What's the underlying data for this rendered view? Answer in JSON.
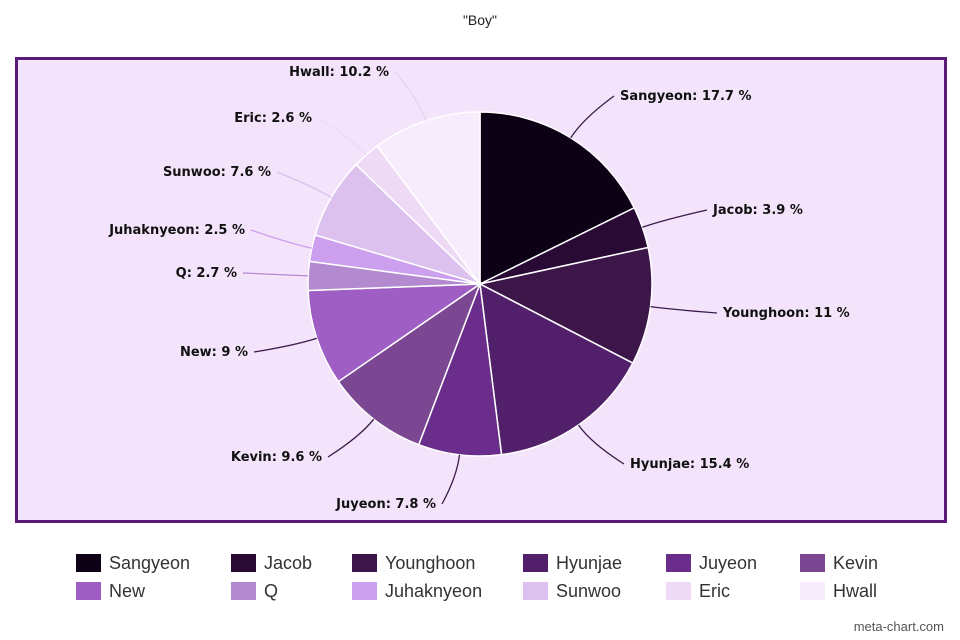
{
  "chart_data": {
    "type": "pie",
    "title": "\"Boy\"",
    "categories": [
      "Sangyeon",
      "Jacob",
      "Younghoon",
      "Hyunjae",
      "Juyeon",
      "Kevin",
      "New",
      "Q",
      "Juhaknyeon",
      "Sunwoo",
      "Eric",
      "Hwall"
    ],
    "values": [
      17.7,
      3.9,
      11,
      15.4,
      7.8,
      9.6,
      9,
      2.7,
      2.5,
      7.6,
      2.6,
      10.2
    ],
    "labels": [
      "Sangyeon: 17.7 %",
      "Jacob: 3.9 %",
      "Younghoon: 11 %",
      "Hyunjae: 15.4 %",
      "Juyeon: 7.8 %",
      "Kevin: 9.6 %",
      "New: 9 %",
      "Q: 2.7 %",
      "Juhaknyeon: 2.5 %",
      "Sunwoo: 7.6 %",
      "Eric: 2.6 %",
      "Hwall: 10.2 %"
    ],
    "colors": [
      "#0d0116",
      "#280a35",
      "#3d1649",
      "#52206b",
      "#6a2d8c",
      "#7b4792",
      "#9e5ec4",
      "#b38ad0",
      "#cda0ef",
      "#dcc0ee",
      "#eedaf4",
      "#f7ecfb"
    ],
    "legend_position": "bottom"
  },
  "watermark": "meta-chart.com"
}
